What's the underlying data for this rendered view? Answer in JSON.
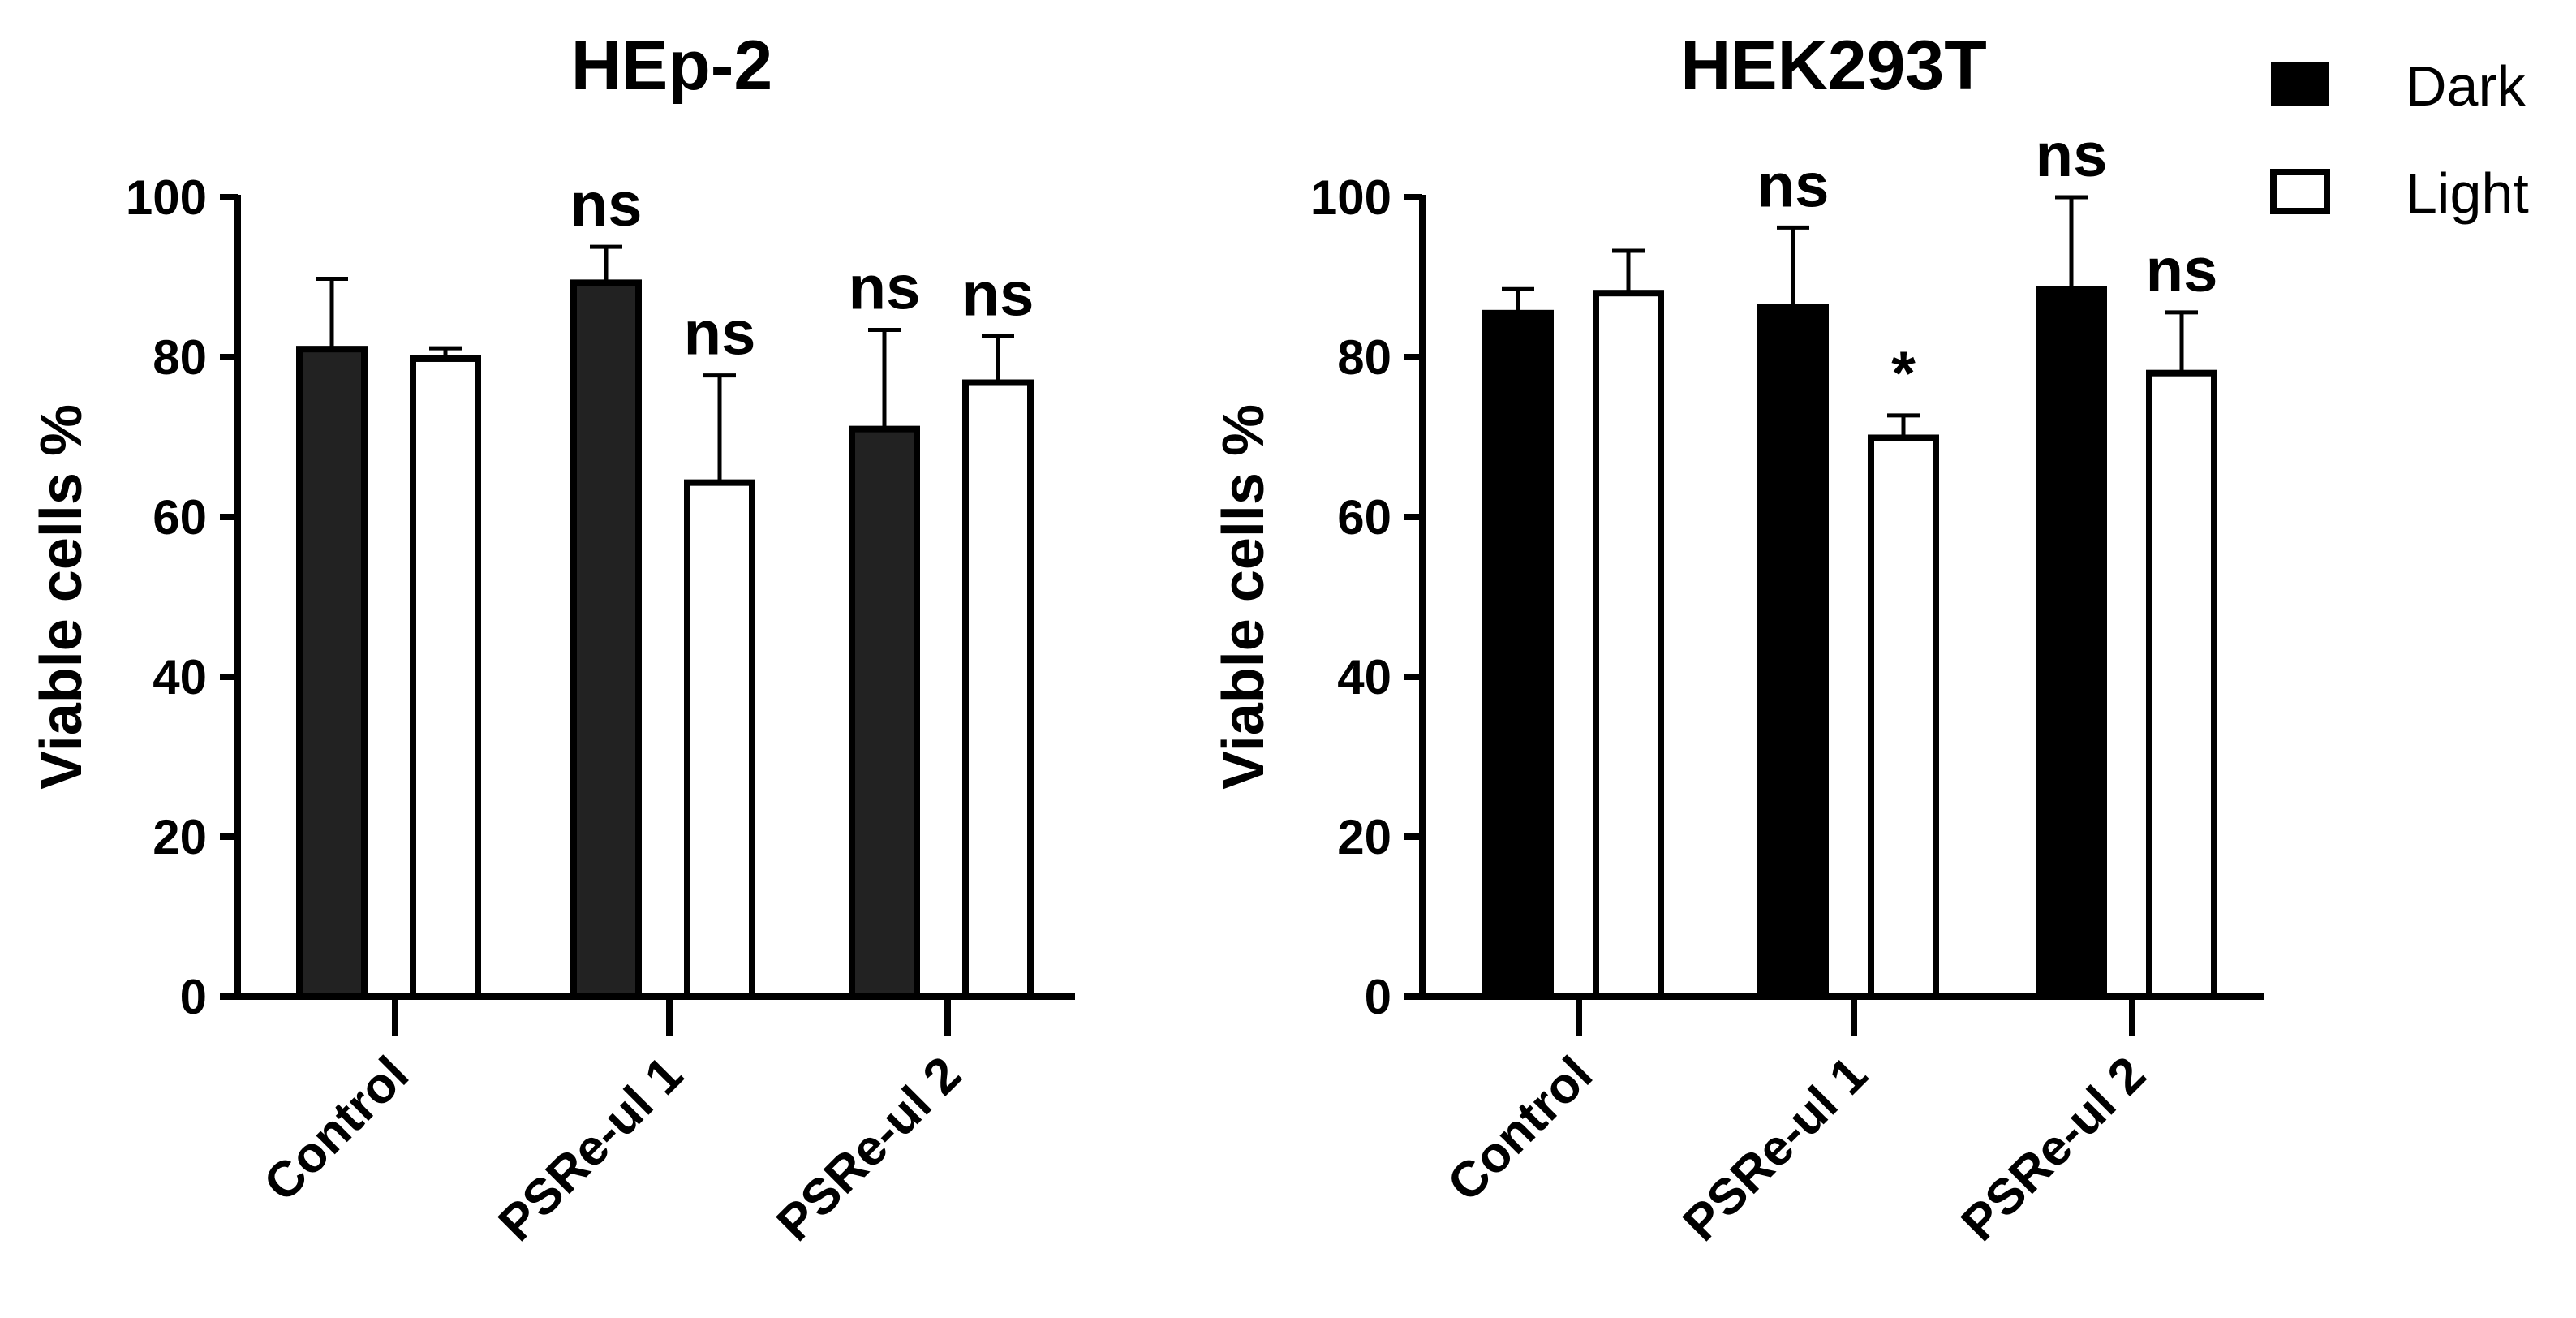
{
  "legend": {
    "entries": [
      {
        "label": "Dark",
        "fill": "#000000"
      },
      {
        "label": "Light",
        "fill": "#ffffff"
      }
    ],
    "placement": "top-right"
  },
  "chart_data": [
    {
      "type": "bar",
      "title": "HEp-2",
      "xlabel": "",
      "ylabel": "Viable cells %",
      "ylim": [
        0,
        100
      ],
      "yticks": [
        "0",
        "20",
        "40",
        "60",
        "80",
        "100"
      ],
      "categories": [
        "Control",
        "PSRe-ul 1",
        "PSRe-ul 2"
      ],
      "series": [
        {
          "name": "Dark",
          "color": "#222222",
          "values": [
            81,
            89.3,
            71
          ],
          "errors": [
            8.8,
            4.5,
            12.4
          ]
        },
        {
          "name": "Light",
          "color": "#ffffff",
          "values": [
            79.8,
            64.3,
            76.8
          ],
          "errors": [
            1.3,
            13.4,
            5.8
          ]
        }
      ],
      "annotations": [
        {
          "series": 0,
          "category": 1,
          "text": "ns"
        },
        {
          "series": 0,
          "category": 2,
          "text": "ns"
        },
        {
          "series": 1,
          "category": 1,
          "text": "ns"
        },
        {
          "series": 1,
          "category": 2,
          "text": "ns"
        }
      ]
    },
    {
      "type": "bar",
      "title": "HEK293T",
      "xlabel": "",
      "ylabel": "Viable cells %",
      "ylim": [
        0,
        100
      ],
      "yticks": [
        "0",
        "20",
        "40",
        "60",
        "80",
        "100"
      ],
      "categories": [
        "Control",
        "PSRe-ul 1",
        "PSRe-ul 2"
      ],
      "series": [
        {
          "name": "Dark",
          "color": "#000000",
          "values": [
            85.5,
            86.2,
            88.5
          ],
          "errors": [
            3,
            10,
            11.5
          ]
        },
        {
          "name": "Light",
          "color": "#ffffff",
          "values": [
            88,
            69.9,
            78
          ],
          "errors": [
            5.3,
            2.8,
            7.6
          ]
        }
      ],
      "annotations": [
        {
          "series": 0,
          "category": 1,
          "text": "ns"
        },
        {
          "series": 0,
          "category": 2,
          "text": "ns"
        },
        {
          "series": 1,
          "category": 1,
          "text": "*"
        },
        {
          "series": 1,
          "category": 2,
          "text": "ns"
        }
      ]
    }
  ]
}
